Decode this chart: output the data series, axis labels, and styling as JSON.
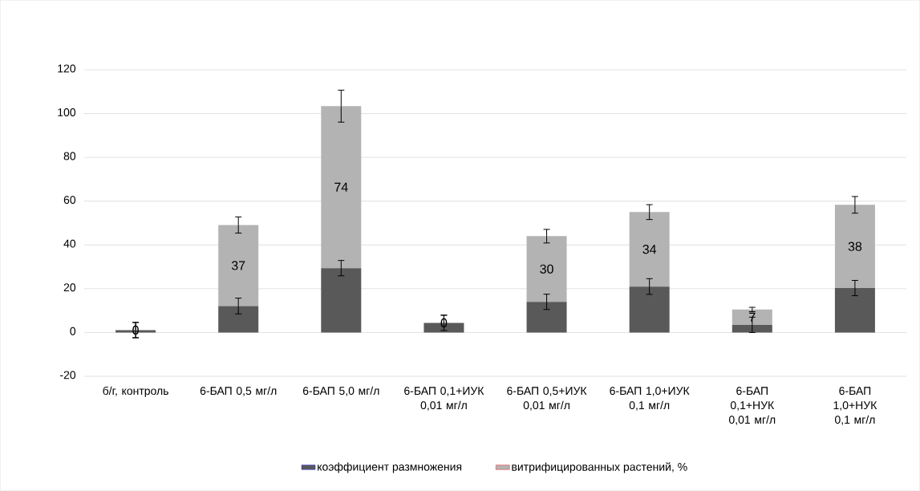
{
  "chart_data": {
    "type": "bar",
    "stacked": true,
    "grid": "y",
    "legend": "bottom",
    "categories": [
      "б/г, контроль",
      "6-БАП 0,5 мг/л",
      "6-БАП 5,0 мг/л",
      "6-БАП 0,1+ИУК 0,01 мг/л",
      "6-БАП 0,5+ИУК 0,01 мг/л",
      "6-БАП 1,0+ИУК 0,1 мг/л",
      "6-БАП 0,1+НУК 0,01 мг/л",
      "6-БАП 1,0+НУК 0,1 мг/л"
    ],
    "ylim": [
      -20,
      120
    ],
    "yticks": [
      -20,
      0,
      20,
      40,
      60,
      80,
      100,
      120
    ],
    "series": [
      {
        "name": "коэффициент размножения",
        "color": "#595959",
        "values": [
          1.1,
          12.1,
          29.4,
          4.4,
          14.0,
          21.0,
          3.5,
          20.3
        ],
        "errors": [
          3.5,
          3.6,
          3.5,
          3.5,
          3.5,
          3.6,
          3.5,
          3.5
        ]
      },
      {
        "name": "витрифицированных растений, %",
        "color": "#b3b3b3",
        "values": [
          0,
          37,
          74,
          0,
          30,
          34,
          7,
          38
        ],
        "errors": [
          3.5,
          3.7,
          7.3,
          3.5,
          3.1,
          3.4,
          1,
          3.8
        ],
        "value_labels": [
          "0",
          "37",
          "74",
          "0",
          "30",
          "34",
          "7",
          "38"
        ]
      }
    ]
  }
}
